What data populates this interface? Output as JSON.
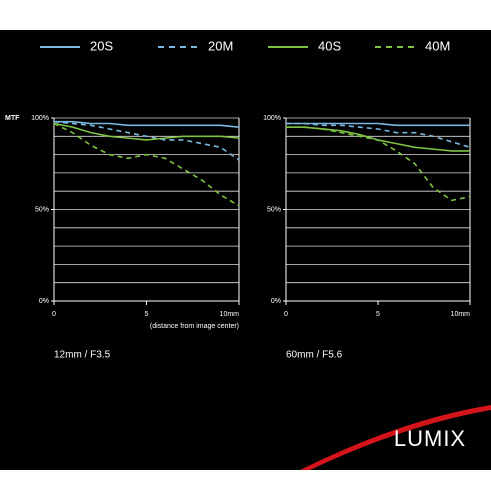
{
  "legend_source": "chart_data.0.series",
  "brand": "LUMIX",
  "chart_data": [
    {
      "type": "line",
      "ylabel": "MTF",
      "xlabel": "(distance from image center)",
      "caption": "12mm / F3.5",
      "x": [
        0,
        1,
        2,
        3,
        4,
        5,
        6,
        7,
        8,
        9,
        10
      ],
      "xlim": [
        0,
        10
      ],
      "xticks": [
        0,
        5,
        {
          "value": 10,
          "label": "10mm"
        }
      ],
      "ylim": [
        0,
        100
      ],
      "yticks": [
        {
          "value": 0,
          "label": "0%"
        },
        {
          "value": 50,
          "label": "50%"
        },
        {
          "value": 100,
          "label": "100%"
        }
      ],
      "ygrid": [
        10,
        20,
        30,
        40,
        50,
        60,
        70,
        80,
        90,
        100
      ],
      "series": [
        {
          "name": "20S",
          "color": "#7ab8e0",
          "dash": false,
          "values": [
            98,
            98,
            97,
            97,
            96,
            96,
            96,
            96,
            96,
            96,
            95
          ]
        },
        {
          "name": "20M",
          "color": "#7ab8e0",
          "dash": true,
          "values": [
            98,
            97,
            96,
            94,
            92,
            90,
            88,
            88,
            86,
            84,
            77
          ]
        },
        {
          "name": "40S",
          "color": "#7dc242",
          "dash": false,
          "values": [
            97,
            95,
            92,
            90,
            89,
            88,
            89,
            90,
            90,
            90,
            89
          ]
        },
        {
          "name": "40M",
          "color": "#7dc242",
          "dash": true,
          "values": [
            97,
            92,
            85,
            80,
            78,
            80,
            78,
            72,
            66,
            58,
            52
          ]
        }
      ]
    },
    {
      "type": "line",
      "caption": "60mm / F5.6",
      "x": [
        0,
        1,
        2,
        3,
        4,
        5,
        6,
        7,
        8,
        9,
        10
      ],
      "xlim": [
        0,
        10
      ],
      "xticks": [
        0,
        5,
        {
          "value": 10,
          "label": "10mm"
        }
      ],
      "ylim": [
        0,
        100
      ],
      "yticks": [
        {
          "value": 0,
          "label": "0%"
        },
        {
          "value": 50,
          "label": "50%"
        },
        {
          "value": 100,
          "label": "100%"
        }
      ],
      "ygrid": [
        10,
        20,
        30,
        40,
        50,
        60,
        70,
        80,
        90,
        100
      ],
      "series": [
        {
          "color": "#7ab8e0",
          "dash": false,
          "values": [
            97,
            97,
            97,
            97,
            97,
            97,
            96,
            96,
            96,
            96,
            96
          ]
        },
        {
          "color": "#7ab8e0",
          "dash": true,
          "values": [
            97,
            97,
            96,
            96,
            95,
            94,
            92,
            92,
            90,
            87,
            84
          ]
        },
        {
          "color": "#7dc242",
          "dash": false,
          "values": [
            95,
            95,
            94,
            93,
            91,
            88,
            86,
            84,
            83,
            82,
            82
          ]
        },
        {
          "color": "#7dc242",
          "dash": true,
          "values": [
            95,
            95,
            94,
            92,
            90,
            88,
            82,
            75,
            62,
            55,
            57
          ]
        }
      ]
    }
  ]
}
